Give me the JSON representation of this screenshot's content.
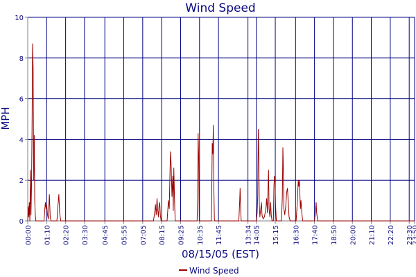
{
  "chart_data": {
    "type": "line",
    "title": "Wind Speed",
    "xlabel": "08/15/05 (EST)",
    "ylabel": "MPH",
    "ylim": [
      0,
      10
    ],
    "yticks": [
      0,
      2,
      4,
      6,
      8,
      10
    ],
    "xlim": [
      "00:00",
      "23:50"
    ],
    "xticks": [
      "00:00",
      "01:10",
      "02:20",
      "03:30",
      "04:45",
      "05:55",
      "07:05",
      "08:15",
      "09:25",
      "10:35",
      "11:45",
      "13:34",
      "14:05",
      "15:15",
      "16:30",
      "17:40",
      "18:50",
      "20:00",
      "21:10",
      "22:20",
      "23:30",
      "23:50"
    ],
    "grid": true,
    "legend_position": "bottom-center",
    "colors": {
      "series": "#990000",
      "grid": "#000080",
      "axis": "#808080",
      "text": "#0a0a80"
    },
    "series": [
      {
        "name": "Wind Speed",
        "points": [
          [
            "00:00",
            0
          ],
          [
            "00:02",
            0.7
          ],
          [
            "00:04",
            0.2
          ],
          [
            "00:06",
            0.9
          ],
          [
            "00:08",
            0
          ],
          [
            "00:10",
            2.5
          ],
          [
            "00:12",
            0.3
          ],
          [
            "00:14",
            1.8
          ],
          [
            "00:16",
            4.5
          ],
          [
            "00:18",
            8.7
          ],
          [
            "00:20",
            7.5
          ],
          [
            "00:22",
            2.0
          ],
          [
            "00:24",
            4.2
          ],
          [
            "00:26",
            1.0
          ],
          [
            "00:28",
            0.3
          ],
          [
            "00:30",
            0
          ],
          [
            "01:00",
            0
          ],
          [
            "01:05",
            0.9
          ],
          [
            "01:08",
            0.6
          ],
          [
            "01:10",
            0.8
          ],
          [
            "01:13",
            0.3
          ],
          [
            "01:16",
            0.1
          ],
          [
            "01:20",
            1.3
          ],
          [
            "01:23",
            0.2
          ],
          [
            "01:26",
            0
          ],
          [
            "01:48",
            0
          ],
          [
            "01:52",
            0.8
          ],
          [
            "01:55",
            1.3
          ],
          [
            "01:58",
            0.4
          ],
          [
            "02:02",
            0
          ],
          [
            "07:45",
            0
          ],
          [
            "07:50",
            0.5
          ],
          [
            "07:52",
            0.8
          ],
          [
            "07:55",
            0.3
          ],
          [
            "07:58",
            1.1
          ],
          [
            "08:00",
            0.6
          ],
          [
            "08:03",
            0.2
          ],
          [
            "08:05",
            0.7
          ],
          [
            "08:08",
            0.9
          ],
          [
            "08:10",
            0.3
          ],
          [
            "08:13",
            0
          ],
          [
            "08:35",
            0
          ],
          [
            "08:40",
            1.0
          ],
          [
            "08:43",
            0.6
          ],
          [
            "08:46",
            2.6
          ],
          [
            "08:48",
            3.4
          ],
          [
            "08:50",
            2.8
          ],
          [
            "08:53",
            1.2
          ],
          [
            "08:56",
            2.2
          ],
          [
            "08:58",
            0.5
          ],
          [
            "09:00",
            2.6
          ],
          [
            "09:03",
            0.8
          ],
          [
            "09:05",
            0
          ],
          [
            "10:26",
            0
          ],
          [
            "10:28",
            1.2
          ],
          [
            "10:30",
            4.3
          ],
          [
            "10:32",
            3.0
          ],
          [
            "10:34",
            0
          ],
          [
            "11:18",
            0
          ],
          [
            "11:20",
            1.0
          ],
          [
            "11:22",
            3.8
          ],
          [
            "11:24",
            3.3
          ],
          [
            "11:26",
            4.7
          ],
          [
            "11:28",
            1.5
          ],
          [
            "11:30",
            0.1
          ],
          [
            "11:32",
            0
          ],
          [
            "13:00",
            0
          ],
          [
            "13:03",
            0.8
          ],
          [
            "13:05",
            1.6
          ],
          [
            "13:07",
            0.6
          ],
          [
            "13:09",
            0
          ],
          [
            "14:05",
            0
          ],
          [
            "14:08",
            0.4
          ],
          [
            "14:10",
            1.2
          ],
          [
            "14:12",
            4.5
          ],
          [
            "14:14",
            3.3
          ],
          [
            "14:16",
            0.8
          ],
          [
            "14:18",
            0.2
          ],
          [
            "14:22",
            0.7
          ],
          [
            "14:24",
            0.9
          ],
          [
            "14:26",
            0.3
          ],
          [
            "14:30",
            0.1
          ],
          [
            "14:35",
            0.2
          ],
          [
            "14:40",
            0.6
          ],
          [
            "14:43",
            1.1
          ],
          [
            "14:46",
            0.4
          ],
          [
            "14:48",
            1.5
          ],
          [
            "14:50",
            2.5
          ],
          [
            "14:52",
            0.6
          ],
          [
            "14:55",
            0.2
          ],
          [
            "14:58",
            0.9
          ],
          [
            "15:00",
            0.3
          ],
          [
            "15:03",
            0
          ],
          [
            "15:08",
            0
          ],
          [
            "15:10",
            1.7
          ],
          [
            "15:12",
            2.2
          ],
          [
            "15:14",
            1.9
          ],
          [
            "15:16",
            0.8
          ],
          [
            "15:19",
            0
          ],
          [
            "15:38",
            0
          ],
          [
            "15:41",
            1.2
          ],
          [
            "15:43",
            3.6
          ],
          [
            "15:45",
            2.5
          ],
          [
            "15:47",
            0.6
          ],
          [
            "15:50",
            0.3
          ],
          [
            "15:54",
            0.8
          ],
          [
            "15:57",
            1.4
          ],
          [
            "16:00",
            1.6
          ],
          [
            "16:03",
            0.9
          ],
          [
            "16:06",
            0.2
          ],
          [
            "16:10",
            0
          ],
          [
            "16:32",
            0
          ],
          [
            "16:36",
            0.8
          ],
          [
            "16:38",
            1.4
          ],
          [
            "16:40",
            2.0
          ],
          [
            "16:42",
            1.7
          ],
          [
            "16:44",
            2.0
          ],
          [
            "16:46",
            1.2
          ],
          [
            "16:48",
            0.6
          ],
          [
            "16:50",
            1.0
          ],
          [
            "16:53",
            0.4
          ],
          [
            "16:56",
            0
          ],
          [
            "17:40",
            0
          ],
          [
            "17:44",
            0.5
          ],
          [
            "17:46",
            0.9
          ],
          [
            "17:48",
            0.4
          ],
          [
            "17:52",
            0
          ],
          [
            "23:50",
            0
          ]
        ]
      }
    ]
  }
}
